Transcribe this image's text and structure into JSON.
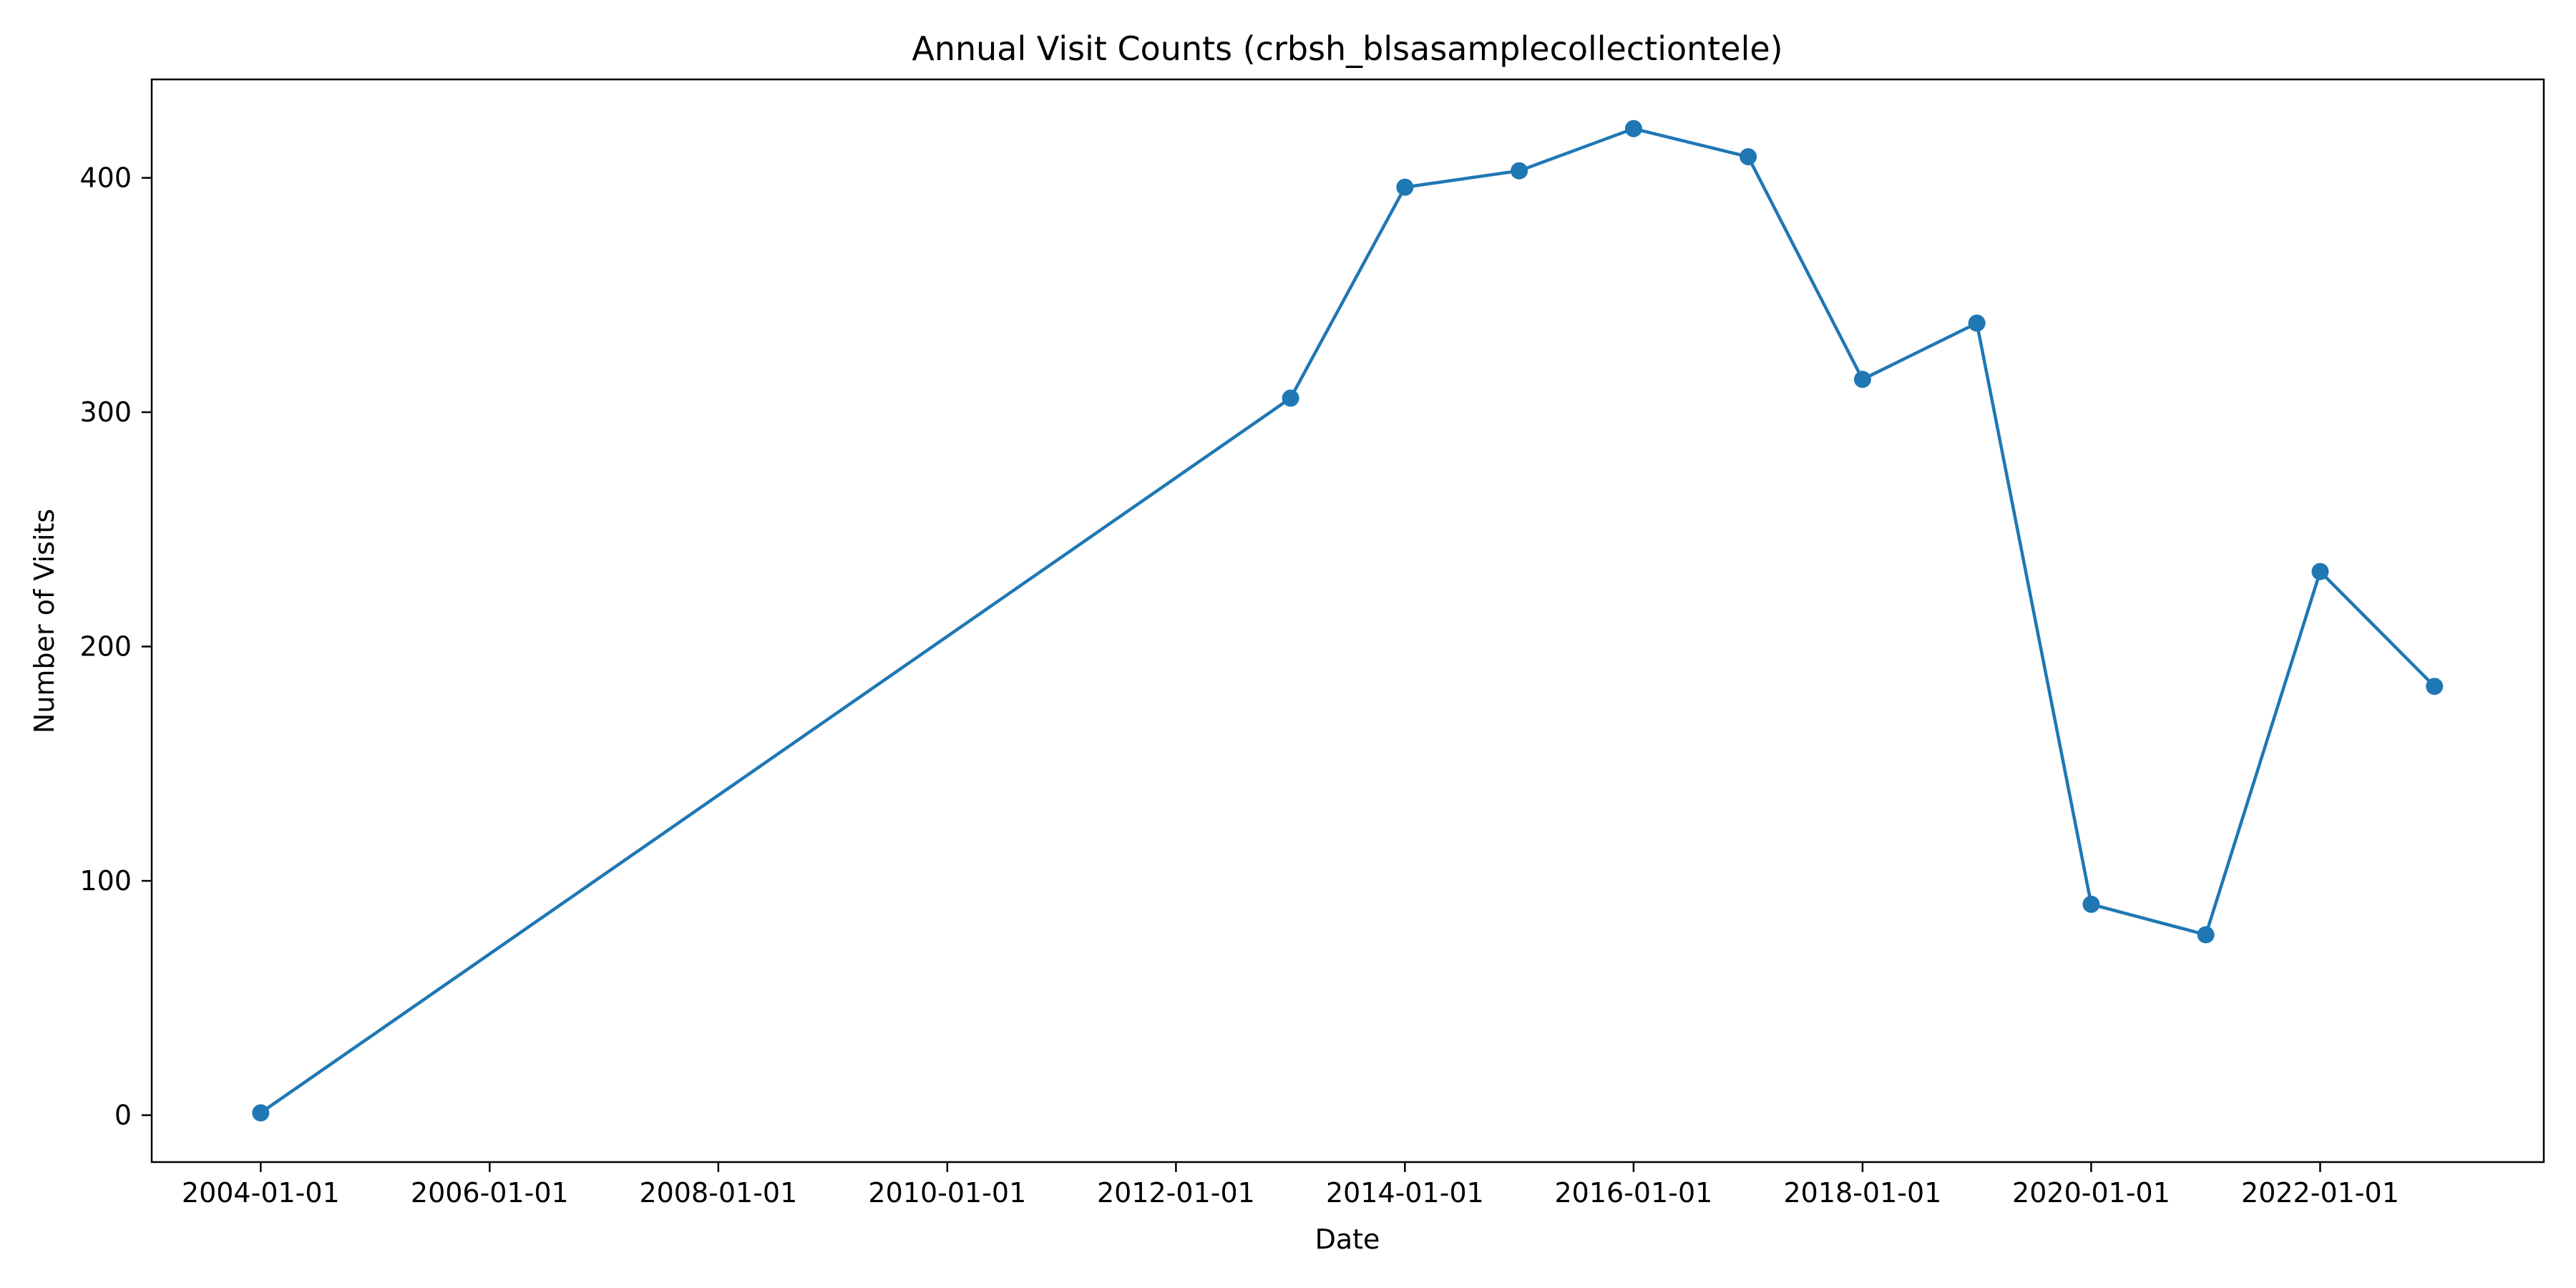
{
  "chart_data": {
    "type": "line",
    "title": "Annual Visit Counts (crbsh_blsasamplecollectiontele)",
    "xlabel": "Date",
    "ylabel": "Number of Visits",
    "x_ticks": [
      "2004-01-01",
      "2006-01-01",
      "2008-01-01",
      "2010-01-01",
      "2012-01-01",
      "2014-01-01",
      "2016-01-01",
      "2018-01-01",
      "2020-01-01",
      "2022-01-01"
    ],
    "y_ticks": [
      0,
      100,
      200,
      300,
      400
    ],
    "xlim": [
      "2003-01-18",
      "2023-12-16"
    ],
    "ylim": [
      -20,
      442
    ],
    "grid": false,
    "color": "#1f77b4",
    "series": [
      {
        "x": [
          "2004-01-01",
          "2013-01-01",
          "2014-01-01",
          "2015-01-01",
          "2016-01-01",
          "2017-01-01",
          "2018-01-01",
          "2019-01-01",
          "2020-01-01",
          "2021-01-01",
          "2022-01-01",
          "2023-01-01"
        ],
        "values": [
          1,
          306,
          396,
          403,
          421,
          409,
          314,
          338,
          90,
          77,
          232,
          183
        ]
      }
    ]
  }
}
